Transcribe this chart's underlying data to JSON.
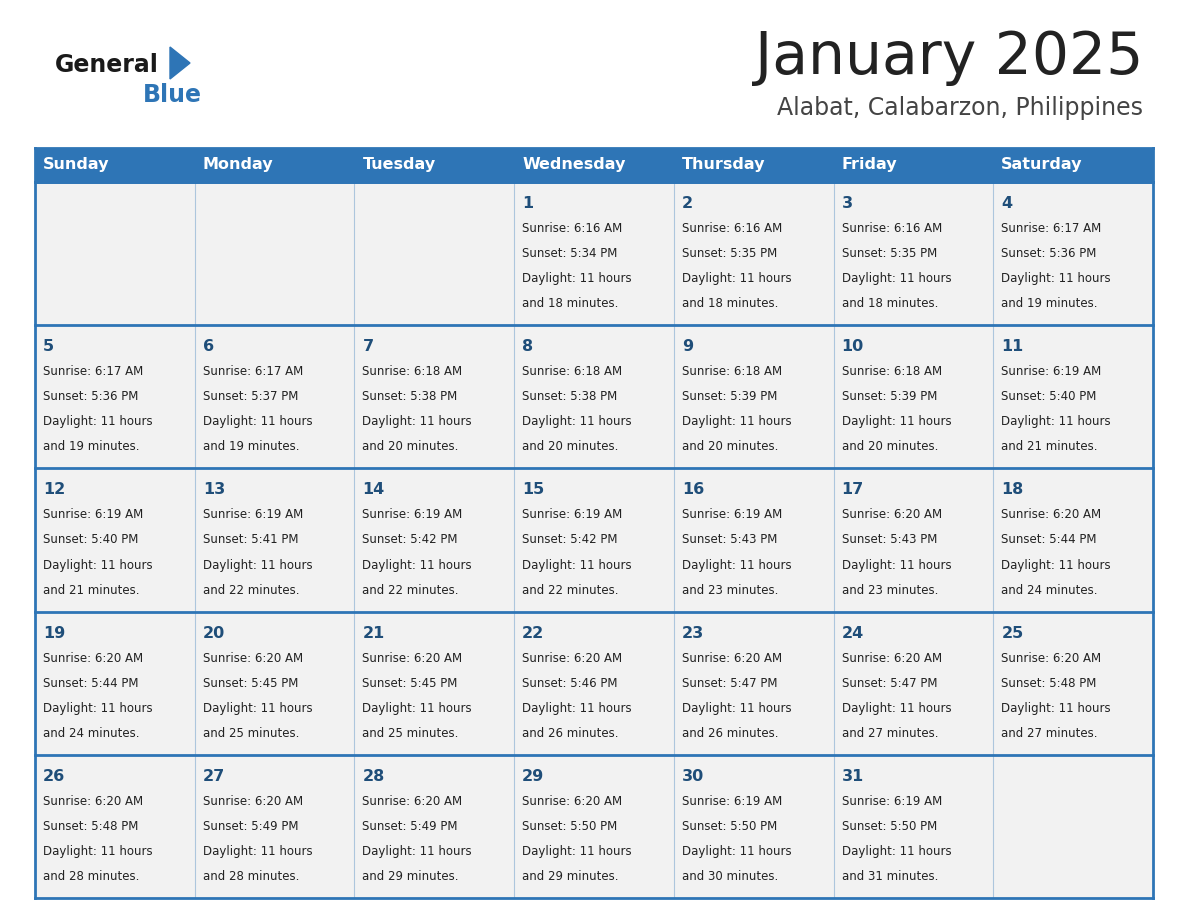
{
  "title": "January 2025",
  "subtitle": "Alabat, Calabarzon, Philippines",
  "header_bg": "#2E75B6",
  "header_text_color": "#FFFFFF",
  "cell_bg_light": "#F2F2F2",
  "cell_bg_white": "#FFFFFF",
  "day_names": [
    "Sunday",
    "Monday",
    "Tuesday",
    "Wednesday",
    "Thursday",
    "Friday",
    "Saturday"
  ],
  "title_color": "#222222",
  "subtitle_color": "#444444",
  "day_num_color": "#1F4E79",
  "cell_text_color": "#222222",
  "grid_line_color": "#2E75B6",
  "logo_general_color": "#1a1a1a",
  "logo_blue_color": "#2E75B6",
  "calendar": [
    [
      null,
      null,
      null,
      {
        "day": 1,
        "sunrise": "6:16 AM",
        "sunset": "5:34 PM",
        "daylight": "11 hours and 18 minutes."
      },
      {
        "day": 2,
        "sunrise": "6:16 AM",
        "sunset": "5:35 PM",
        "daylight": "11 hours and 18 minutes."
      },
      {
        "day": 3,
        "sunrise": "6:16 AM",
        "sunset": "5:35 PM",
        "daylight": "11 hours and 18 minutes."
      },
      {
        "day": 4,
        "sunrise": "6:17 AM",
        "sunset": "5:36 PM",
        "daylight": "11 hours and 19 minutes."
      }
    ],
    [
      {
        "day": 5,
        "sunrise": "6:17 AM",
        "sunset": "5:36 PM",
        "daylight": "11 hours and 19 minutes."
      },
      {
        "day": 6,
        "sunrise": "6:17 AM",
        "sunset": "5:37 PM",
        "daylight": "11 hours and 19 minutes."
      },
      {
        "day": 7,
        "sunrise": "6:18 AM",
        "sunset": "5:38 PM",
        "daylight": "11 hours and 20 minutes."
      },
      {
        "day": 8,
        "sunrise": "6:18 AM",
        "sunset": "5:38 PM",
        "daylight": "11 hours and 20 minutes."
      },
      {
        "day": 9,
        "sunrise": "6:18 AM",
        "sunset": "5:39 PM",
        "daylight": "11 hours and 20 minutes."
      },
      {
        "day": 10,
        "sunrise": "6:18 AM",
        "sunset": "5:39 PM",
        "daylight": "11 hours and 20 minutes."
      },
      {
        "day": 11,
        "sunrise": "6:19 AM",
        "sunset": "5:40 PM",
        "daylight": "11 hours and 21 minutes."
      }
    ],
    [
      {
        "day": 12,
        "sunrise": "6:19 AM",
        "sunset": "5:40 PM",
        "daylight": "11 hours and 21 minutes."
      },
      {
        "day": 13,
        "sunrise": "6:19 AM",
        "sunset": "5:41 PM",
        "daylight": "11 hours and 22 minutes."
      },
      {
        "day": 14,
        "sunrise": "6:19 AM",
        "sunset": "5:42 PM",
        "daylight": "11 hours and 22 minutes."
      },
      {
        "day": 15,
        "sunrise": "6:19 AM",
        "sunset": "5:42 PM",
        "daylight": "11 hours and 22 minutes."
      },
      {
        "day": 16,
        "sunrise": "6:19 AM",
        "sunset": "5:43 PM",
        "daylight": "11 hours and 23 minutes."
      },
      {
        "day": 17,
        "sunrise": "6:20 AM",
        "sunset": "5:43 PM",
        "daylight": "11 hours and 23 minutes."
      },
      {
        "day": 18,
        "sunrise": "6:20 AM",
        "sunset": "5:44 PM",
        "daylight": "11 hours and 24 minutes."
      }
    ],
    [
      {
        "day": 19,
        "sunrise": "6:20 AM",
        "sunset": "5:44 PM",
        "daylight": "11 hours and 24 minutes."
      },
      {
        "day": 20,
        "sunrise": "6:20 AM",
        "sunset": "5:45 PM",
        "daylight": "11 hours and 25 minutes."
      },
      {
        "day": 21,
        "sunrise": "6:20 AM",
        "sunset": "5:45 PM",
        "daylight": "11 hours and 25 minutes."
      },
      {
        "day": 22,
        "sunrise": "6:20 AM",
        "sunset": "5:46 PM",
        "daylight": "11 hours and 26 minutes."
      },
      {
        "day": 23,
        "sunrise": "6:20 AM",
        "sunset": "5:47 PM",
        "daylight": "11 hours and 26 minutes."
      },
      {
        "day": 24,
        "sunrise": "6:20 AM",
        "sunset": "5:47 PM",
        "daylight": "11 hours and 27 minutes."
      },
      {
        "day": 25,
        "sunrise": "6:20 AM",
        "sunset": "5:48 PM",
        "daylight": "11 hours and 27 minutes."
      }
    ],
    [
      {
        "day": 26,
        "sunrise": "6:20 AM",
        "sunset": "5:48 PM",
        "daylight": "11 hours and 28 minutes."
      },
      {
        "day": 27,
        "sunrise": "6:20 AM",
        "sunset": "5:49 PM",
        "daylight": "11 hours and 28 minutes."
      },
      {
        "day": 28,
        "sunrise": "6:20 AM",
        "sunset": "5:49 PM",
        "daylight": "11 hours and 29 minutes."
      },
      {
        "day": 29,
        "sunrise": "6:20 AM",
        "sunset": "5:50 PM",
        "daylight": "11 hours and 29 minutes."
      },
      {
        "day": 30,
        "sunrise": "6:19 AM",
        "sunset": "5:50 PM",
        "daylight": "11 hours and 30 minutes."
      },
      {
        "day": 31,
        "sunrise": "6:19 AM",
        "sunset": "5:50 PM",
        "daylight": "11 hours and 31 minutes."
      },
      null
    ]
  ]
}
